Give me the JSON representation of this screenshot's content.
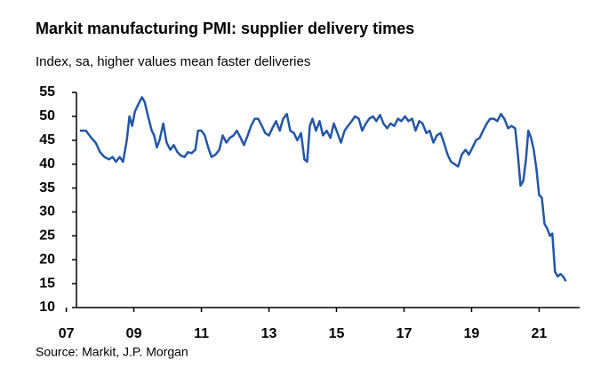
{
  "chart_data": {
    "type": "line",
    "title": "Markit manufacturing PMI: supplier delivery times",
    "subtitle": "Index, sa, higher values mean faster deliveries",
    "source": "Source: Markit, J.P. Morgan",
    "series": [
      {
        "color": "#2356a8",
        "x": [
          2007.4,
          2007.58,
          2007.74,
          2007.87,
          2008.0,
          2008.13,
          2008.26,
          2008.37,
          2008.47,
          2008.58,
          2008.68,
          2008.79,
          2008.87,
          2008.95,
          2009.03,
          2009.13,
          2009.24,
          2009.32,
          2009.42,
          2009.53,
          2009.6,
          2009.68,
          2009.76,
          2009.87,
          2009.97,
          2010.08,
          2010.18,
          2010.29,
          2010.39,
          2010.5,
          2010.6,
          2010.71,
          2010.82,
          2010.9,
          2011.0,
          2011.1,
          2011.2,
          2011.3,
          2011.42,
          2011.53,
          2011.63,
          2011.74,
          2011.84,
          2011.95,
          2012.05,
          2012.16,
          2012.26,
          2012.37,
          2012.47,
          2012.58,
          2012.68,
          2012.79,
          2012.89,
          2013.0,
          2013.1,
          2013.21,
          2013.32,
          2013.42,
          2013.53,
          2013.63,
          2013.74,
          2013.84,
          2013.95,
          2014.05,
          2014.13,
          2014.21,
          2014.29,
          2014.39,
          2014.5,
          2014.6,
          2014.71,
          2014.82,
          2014.92,
          2015.03,
          2015.13,
          2015.24,
          2015.34,
          2015.45,
          2015.55,
          2015.66,
          2015.76,
          2015.87,
          2015.97,
          2016.08,
          2016.18,
          2016.29,
          2016.39,
          2016.5,
          2016.6,
          2016.71,
          2016.82,
          2016.92,
          2017.03,
          2017.13,
          2017.24,
          2017.34,
          2017.45,
          2017.55,
          2017.66,
          2017.76,
          2017.87,
          2017.97,
          2018.08,
          2018.18,
          2018.29,
          2018.39,
          2018.5,
          2018.6,
          2018.71,
          2018.82,
          2018.92,
          2019.03,
          2019.13,
          2019.24,
          2019.34,
          2019.45,
          2019.55,
          2019.66,
          2019.76,
          2019.87,
          2019.97,
          2020.08,
          2020.18,
          2020.29,
          2020.37,
          2020.45,
          2020.53,
          2020.61,
          2020.68,
          2020.76,
          2020.84,
          2020.92,
          2021.0,
          2021.08,
          2021.16,
          2021.24,
          2021.32,
          2021.39,
          2021.47,
          2021.55,
          2021.63,
          2021.71,
          2021.79
        ],
        "values": [
          47,
          47,
          45.5,
          44.5,
          42.5,
          41.5,
          41,
          41.5,
          40.5,
          41.5,
          40.5,
          45,
          50,
          48,
          51,
          52.5,
          54,
          53,
          50,
          47,
          46,
          43.5,
          45,
          48.5,
          44.5,
          43,
          44,
          42.5,
          41.8,
          41.5,
          42.5,
          42.3,
          43,
          47,
          47,
          46,
          43.5,
          41.5,
          42,
          43,
          46,
          44.5,
          45.5,
          46,
          47,
          45.5,
          44,
          46,
          48,
          49.5,
          49.5,
          48,
          46.5,
          46,
          47.5,
          49,
          47,
          49.5,
          50.5,
          47,
          46.5,
          45,
          46.5,
          41,
          40.5,
          48,
          49.5,
          47,
          49,
          46,
          47,
          45.5,
          48.5,
          46.5,
          44.5,
          47,
          48,
          49,
          50,
          49.5,
          47,
          48.5,
          49.5,
          50,
          49,
          50.3,
          48.5,
          47.5,
          48.5,
          48,
          49.5,
          49,
          50,
          49,
          49.5,
          47,
          49,
          48.5,
          46.5,
          47,
          44.5,
          46,
          46.5,
          44.5,
          42,
          40.5,
          40,
          39.5,
          42,
          43,
          42,
          43.5,
          45,
          45.5,
          47,
          48.5,
          49.5,
          49.5,
          49,
          50.5,
          49.5,
          47.5,
          48,
          47.5,
          42,
          35.5,
          36.5,
          41,
          47,
          45.5,
          43,
          39,
          33.5,
          33,
          27.5,
          26.5,
          25,
          25.5,
          17.5,
          16.5,
          17,
          16.5,
          15.5
        ]
      }
    ],
    "xlim": [
      2007.3,
      2022.2
    ],
    "xticks": [
      {
        "value": 2007,
        "label": "07"
      },
      {
        "value": 2009,
        "label": "09"
      },
      {
        "value": 2011,
        "label": "11"
      },
      {
        "value": 2013,
        "label": "13"
      },
      {
        "value": 2015,
        "label": "15"
      },
      {
        "value": 2017,
        "label": "17"
      },
      {
        "value": 2019,
        "label": "19"
      },
      {
        "value": 2021,
        "label": "21"
      }
    ],
    "ylim": [
      10,
      55
    ],
    "yticks": [
      10,
      15,
      20,
      25,
      30,
      35,
      40,
      45,
      50,
      55
    ]
  }
}
